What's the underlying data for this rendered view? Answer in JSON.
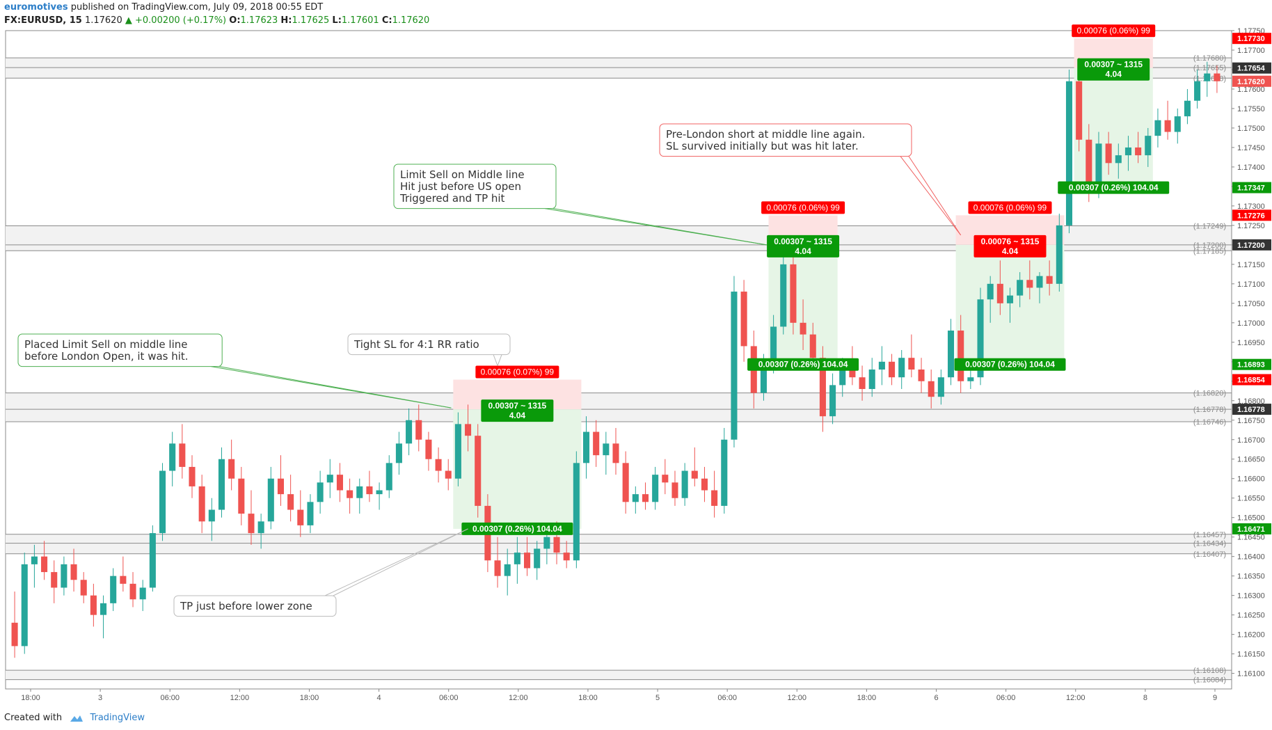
{
  "header": {
    "author": "euromotives",
    "published": "published on TradingView.com, July 09, 2018 00:55 EDT",
    "symbol": "FX:EURUSD, 15",
    "last": "1.17620",
    "change": "▲ +0.00200 (+0.17%)",
    "ohlc": [
      {
        "k": "O:",
        "v": "1.17623"
      },
      {
        "k": "H:",
        "v": "1.17625"
      },
      {
        "k": "L:",
        "v": "1.17601"
      },
      {
        "k": "C:",
        "v": "1.17620"
      }
    ]
  },
  "footer": {
    "created_with": "Created with",
    "brand": "TradingView"
  },
  "colors": {
    "up": "#26a69a",
    "down": "#ef5350",
    "green_box": "#0a9a0a",
    "red_box": "#ff0000",
    "profit_zone": "#e6f5e6",
    "loss_zone": "#fde2e2",
    "note_green": "#4caf50",
    "note_red": "#f06060",
    "note_gray": "#bbbbbb"
  },
  "chart_data": {
    "type": "candlestick",
    "symbol": "EURUSD",
    "timeframe": "15",
    "ylim": [
      1.1606,
      1.1775
    ],
    "grid": false,
    "y_ticks": [
      "1.17750",
      "1.17700",
      "1.17650",
      "1.17600",
      "1.17550",
      "1.17500",
      "1.17450",
      "1.17400",
      "1.17350",
      "1.17300",
      "1.17250",
      "1.17200",
      "1.17150",
      "1.17100",
      "1.17050",
      "1.17000",
      "1.16950",
      "1.16900",
      "1.16850",
      "1.16800",
      "1.16750",
      "1.16700",
      "1.16650",
      "1.16600",
      "1.16550",
      "1.16500",
      "1.16450",
      "1.16400",
      "1.16350",
      "1.16300",
      "1.16250",
      "1.16200",
      "1.16150",
      "1.16100"
    ],
    "x_ticks": [
      "18:00",
      "3",
      "06:00",
      "12:00",
      "18:00",
      "4",
      "06:00",
      "12:00",
      "18:00",
      "5",
      "06:00",
      "12:00",
      "18:00",
      "6",
      "06:00",
      "12:00",
      "8",
      "9"
    ],
    "candles": [
      [
        1.1623,
        1.1631,
        1.1614,
        1.1617
      ],
      [
        1.1617,
        1.1641,
        1.1615,
        1.1638
      ],
      [
        1.1638,
        1.1643,
        1.1632,
        1.164
      ],
      [
        1.164,
        1.1644,
        1.1634,
        1.1636
      ],
      [
        1.1636,
        1.1639,
        1.1628,
        1.1632
      ],
      [
        1.1632,
        1.164,
        1.163,
        1.1638
      ],
      [
        1.1638,
        1.1642,
        1.1631,
        1.1634
      ],
      [
        1.1634,
        1.1636,
        1.1628,
        1.163
      ],
      [
        1.163,
        1.1633,
        1.1622,
        1.1625
      ],
      [
        1.1625,
        1.163,
        1.1619,
        1.1628
      ],
      [
        1.1628,
        1.1637,
        1.1626,
        1.1635
      ],
      [
        1.1635,
        1.164,
        1.1631,
        1.1633
      ],
      [
        1.1633,
        1.1636,
        1.1627,
        1.1629
      ],
      [
        1.1629,
        1.1634,
        1.1626,
        1.1632
      ],
      [
        1.1632,
        1.1648,
        1.1631,
        1.1646
      ],
      [
        1.1646,
        1.1664,
        1.1644,
        1.1662
      ],
      [
        1.1662,
        1.1672,
        1.1658,
        1.1669
      ],
      [
        1.1669,
        1.1674,
        1.166,
        1.1663
      ],
      [
        1.1663,
        1.1666,
        1.1655,
        1.1658
      ],
      [
        1.1658,
        1.1661,
        1.1646,
        1.1649
      ],
      [
        1.1649,
        1.1655,
        1.1644,
        1.1652
      ],
      [
        1.1652,
        1.1668,
        1.165,
        1.1665
      ],
      [
        1.1665,
        1.167,
        1.1657,
        1.166
      ],
      [
        1.166,
        1.1663,
        1.1648,
        1.1651
      ],
      [
        1.1651,
        1.1657,
        1.1643,
        1.1646
      ],
      [
        1.1646,
        1.1651,
        1.1642,
        1.1649
      ],
      [
        1.1649,
        1.1663,
        1.1647,
        1.166
      ],
      [
        1.166,
        1.1666,
        1.1653,
        1.1656
      ],
      [
        1.1656,
        1.1661,
        1.1649,
        1.1652
      ],
      [
        1.1652,
        1.1657,
        1.1645,
        1.1648
      ],
      [
        1.1648,
        1.1656,
        1.1646,
        1.1654
      ],
      [
        1.1654,
        1.1662,
        1.1651,
        1.1659
      ],
      [
        1.1659,
        1.1665,
        1.1655,
        1.1661
      ],
      [
        1.1661,
        1.1664,
        1.1654,
        1.1657
      ],
      [
        1.1657,
        1.166,
        1.1651,
        1.1655
      ],
      [
        1.1655,
        1.166,
        1.1651,
        1.1658
      ],
      [
        1.1658,
        1.1662,
        1.1654,
        1.1656
      ],
      [
        1.1656,
        1.1659,
        1.1652,
        1.1657
      ],
      [
        1.1657,
        1.1666,
        1.1655,
        1.1664
      ],
      [
        1.1664,
        1.1672,
        1.1661,
        1.1669
      ],
      [
        1.1669,
        1.1678,
        1.1666,
        1.1675
      ],
      [
        1.1675,
        1.1679,
        1.1667,
        1.167
      ],
      [
        1.167,
        1.1672,
        1.1662,
        1.1665
      ],
      [
        1.1665,
        1.1668,
        1.1659,
        1.1662
      ],
      [
        1.1662,
        1.1665,
        1.1657,
        1.166
      ],
      [
        1.166,
        1.1677,
        1.1658,
        1.1674
      ],
      [
        1.1674,
        1.1679,
        1.1667,
        1.1671
      ],
      [
        1.1671,
        1.1674,
        1.165,
        1.1653
      ],
      [
        1.1653,
        1.1656,
        1.1636,
        1.1639
      ],
      [
        1.1639,
        1.1645,
        1.1632,
        1.1635
      ],
      [
        1.1635,
        1.1642,
        1.163,
        1.1638
      ],
      [
        1.1638,
        1.1645,
        1.1633,
        1.1641
      ],
      [
        1.1641,
        1.1645,
        1.1635,
        1.1637
      ],
      [
        1.1637,
        1.1644,
        1.1634,
        1.1642
      ],
      [
        1.1642,
        1.1648,
        1.1638,
        1.1645
      ],
      [
        1.1645,
        1.1649,
        1.1638,
        1.1641
      ],
      [
        1.1641,
        1.1644,
        1.1637,
        1.1639
      ],
      [
        1.1639,
        1.1667,
        1.1637,
        1.1664
      ],
      [
        1.1664,
        1.1676,
        1.166,
        1.1672
      ],
      [
        1.1672,
        1.1675,
        1.1663,
        1.1666
      ],
      [
        1.1666,
        1.1672,
        1.1661,
        1.1669
      ],
      [
        1.1669,
        1.1673,
        1.1661,
        1.1664
      ],
      [
        1.1664,
        1.1667,
        1.1651,
        1.1654
      ],
      [
        1.1654,
        1.1658,
        1.1651,
        1.1656
      ],
      [
        1.1656,
        1.1659,
        1.1652,
        1.1654
      ],
      [
        1.1654,
        1.1663,
        1.1652,
        1.1661
      ],
      [
        1.1661,
        1.1665,
        1.1656,
        1.1659
      ],
      [
        1.1659,
        1.1662,
        1.1653,
        1.1655
      ],
      [
        1.1655,
        1.1664,
        1.1653,
        1.1662
      ],
      [
        1.1662,
        1.1668,
        1.1658,
        1.166
      ],
      [
        1.166,
        1.1663,
        1.1654,
        1.1657
      ],
      [
        1.1657,
        1.1662,
        1.165,
        1.1653
      ],
      [
        1.1653,
        1.1673,
        1.1651,
        1.167
      ],
      [
        1.167,
        1.1712,
        1.1668,
        1.1708
      ],
      [
        1.1708,
        1.1711,
        1.169,
        1.1694
      ],
      [
        1.1694,
        1.1698,
        1.1678,
        1.1682
      ],
      [
        1.1682,
        1.1692,
        1.168,
        1.1689
      ],
      [
        1.1689,
        1.1702,
        1.1687,
        1.1699
      ],
      [
        1.1699,
        1.1718,
        1.1697,
        1.1715
      ],
      [
        1.1715,
        1.1717,
        1.1697,
        1.17
      ],
      [
        1.17,
        1.1706,
        1.1693,
        1.1697
      ],
      [
        1.1697,
        1.17,
        1.1688,
        1.1691
      ],
      [
        1.1691,
        1.1694,
        1.1672,
        1.1676
      ],
      [
        1.1676,
        1.1687,
        1.1674,
        1.1684
      ],
      [
        1.1684,
        1.1691,
        1.1681,
        1.1689
      ],
      [
        1.1689,
        1.1694,
        1.1684,
        1.1686
      ],
      [
        1.1686,
        1.1689,
        1.168,
        1.1683
      ],
      [
        1.1683,
        1.1691,
        1.1681,
        1.1688
      ],
      [
        1.1688,
        1.1694,
        1.1684,
        1.169
      ],
      [
        1.169,
        1.1692,
        1.1684,
        1.1686
      ],
      [
        1.1686,
        1.1693,
        1.1683,
        1.1691
      ],
      [
        1.1691,
        1.1697,
        1.1686,
        1.1688
      ],
      [
        1.1688,
        1.1691,
        1.1682,
        1.1685
      ],
      [
        1.1685,
        1.1688,
        1.1678,
        1.1681
      ],
      [
        1.1681,
        1.1688,
        1.1679,
        1.1686
      ],
      [
        1.1686,
        1.1701,
        1.1684,
        1.1698
      ],
      [
        1.1698,
        1.1702,
        1.1682,
        1.1685
      ],
      [
        1.1685,
        1.1688,
        1.1683,
        1.1686
      ],
      [
        1.1686,
        1.1709,
        1.1684,
        1.1706
      ],
      [
        1.1706,
        1.1712,
        1.17,
        1.171
      ],
      [
        1.171,
        1.1716,
        1.1702,
        1.1705
      ],
      [
        1.1705,
        1.1709,
        1.17,
        1.1707
      ],
      [
        1.1707,
        1.1713,
        1.1704,
        1.1711
      ],
      [
        1.1711,
        1.1716,
        1.1706,
        1.1709
      ],
      [
        1.1709,
        1.1713,
        1.1705,
        1.1712
      ],
      [
        1.1712,
        1.1716,
        1.1707,
        1.171
      ],
      [
        1.171,
        1.1728,
        1.1708,
        1.1725
      ],
      [
        1.1725,
        1.1765,
        1.1723,
        1.1762
      ],
      [
        1.1762,
        1.1768,
        1.1744,
        1.1747
      ],
      [
        1.1747,
        1.1751,
        1.1731,
        1.1734
      ],
      [
        1.1734,
        1.1749,
        1.1732,
        1.1746
      ],
      [
        1.1746,
        1.1749,
        1.1738,
        1.1741
      ],
      [
        1.1741,
        1.1746,
        1.1737,
        1.1743
      ],
      [
        1.1743,
        1.1748,
        1.1739,
        1.1745
      ],
      [
        1.1745,
        1.1749,
        1.1741,
        1.1743
      ],
      [
        1.1743,
        1.175,
        1.174,
        1.1748
      ],
      [
        1.1748,
        1.1755,
        1.1745,
        1.1752
      ],
      [
        1.1752,
        1.1757,
        1.1747,
        1.1749
      ],
      [
        1.1749,
        1.1755,
        1.1746,
        1.1753
      ],
      [
        1.1753,
        1.176,
        1.1751,
        1.1757
      ],
      [
        1.1757,
        1.1765,
        1.1755,
        1.1762
      ],
      [
        1.1762,
        1.1767,
        1.1758,
        1.1764
      ],
      [
        1.1764,
        1.1766,
        1.1759,
        1.1762
      ]
    ],
    "horizontal_levels": [
      {
        "label": "(1.17680)",
        "value": 1.1768
      },
      {
        "label": "(1.17655)",
        "value": 1.17655
      },
      {
        "label": "(1.17628)",
        "value": 1.17628
      },
      {
        "label": "(1.17249)",
        "value": 1.17249
      },
      {
        "label": "(1.17200)",
        "value": 1.172
      },
      {
        "label": "(1.17185)",
        "value": 1.17185
      },
      {
        "label": "(1.16820)",
        "value": 1.1682
      },
      {
        "label": "(1.16778)",
        "value": 1.16778
      },
      {
        "label": "(1.16746)",
        "value": 1.16746
      },
      {
        "label": "(1.16457)",
        "value": 1.16457
      },
      {
        "label": "(1.16434)",
        "value": 1.16434
      },
      {
        "label": "(1.16407)",
        "value": 1.16407
      },
      {
        "label": "(1.16108)",
        "value": 1.16108
      },
      {
        "label": "(1.16084)",
        "value": 1.16084
      }
    ],
    "zones": [
      [
        1.1768,
        1.17655
      ],
      [
        1.17655,
        1.17628
      ],
      [
        1.17249,
        1.172
      ],
      [
        1.172,
        1.17185
      ],
      [
        1.1682,
        1.16778
      ],
      [
        1.16778,
        1.16746
      ],
      [
        1.16457,
        1.16434
      ],
      [
        1.16434,
        1.16407
      ],
      [
        1.16108,
        1.16084
      ]
    ],
    "price_badges": [
      {
        "text": "1.17730",
        "value": 1.1773,
        "color": "red"
      },
      {
        "text": "1.17654",
        "value": 1.17654,
        "color": "dark"
      },
      {
        "text": "1.17620",
        "value": 1.1762,
        "color": "salmon"
      },
      {
        "text": "1.17347",
        "value": 1.17347,
        "color": "green"
      },
      {
        "text": "1.17276",
        "value": 1.17276,
        "color": "red"
      },
      {
        "text": "1.17200",
        "value": 1.172,
        "color": "dark"
      },
      {
        "text": "1.16893",
        "value": 1.16893,
        "color": "green"
      },
      {
        "text": "1.16854",
        "value": 1.16854,
        "color": "red"
      },
      {
        "text": "1.16778",
        "value": 1.16778,
        "color": "dark"
      },
      {
        "text": "1.16471",
        "value": 1.16471,
        "color": "green"
      }
    ],
    "trades": [
      {
        "entry": 1.16778,
        "stop": 1.16854,
        "target": 1.16471,
        "start_bar": 45,
        "end_bar": 57,
        "entry_color": "green",
        "risk_label": "0.00076 (0.07%) 99",
        "entry_label": "0.00307 ~ 1315",
        "ratio_label": "4.04",
        "target_label": "0.00307 (0.26%) 104.04"
      },
      {
        "entry": 1.172,
        "stop": 1.17276,
        "target": 1.16893,
        "start_bar": 77,
        "end_bar": 83,
        "entry_color": "green",
        "risk_label": "0.00076 (0.06%) 99",
        "entry_label": "0.00307 ~ 1315",
        "ratio_label": "4.04",
        "target_label": "0.00307 (0.26%) 104.04"
      },
      {
        "entry": 1.172,
        "stop": 1.17276,
        "target": 1.16893,
        "start_bar": 96,
        "end_bar": 106,
        "entry_color": "red",
        "risk_label": "0.00076 (0.06%) 99",
        "entry_label": "0.00076 ~ 1315",
        "ratio_label": "4.04",
        "target_label": "0.00307 (0.26%) 104.04"
      },
      {
        "entry": 1.17654,
        "stop": 1.1773,
        "target": 1.17347,
        "start_bar": 108,
        "end_bar": 115,
        "entry_color": "green",
        "risk_label": "0.00076 (0.06%) 99",
        "entry_label": "0.00307 ~ 1315",
        "ratio_label": "4.04",
        "target_label": "0.00307 (0.26%) 104.04"
      }
    ],
    "annotations": [
      {
        "lines": [
          "Placed Limit Sell on middle line",
          "before London Open, it was hit."
        ],
        "style": "green"
      },
      {
        "lines": [
          "Tight SL for 4:1 RR ratio"
        ],
        "style": "gray"
      },
      {
        "lines": [
          "TP just before lower zone"
        ],
        "style": "gray"
      },
      {
        "lines": [
          "Limit Sell on Middle line",
          "Hit just before US open",
          "Triggered and TP hit"
        ],
        "style": "green"
      },
      {
        "lines": [
          "Pre-London short at middle line again.",
          "SL survived initially but was hit later."
        ],
        "style": "red"
      }
    ]
  }
}
